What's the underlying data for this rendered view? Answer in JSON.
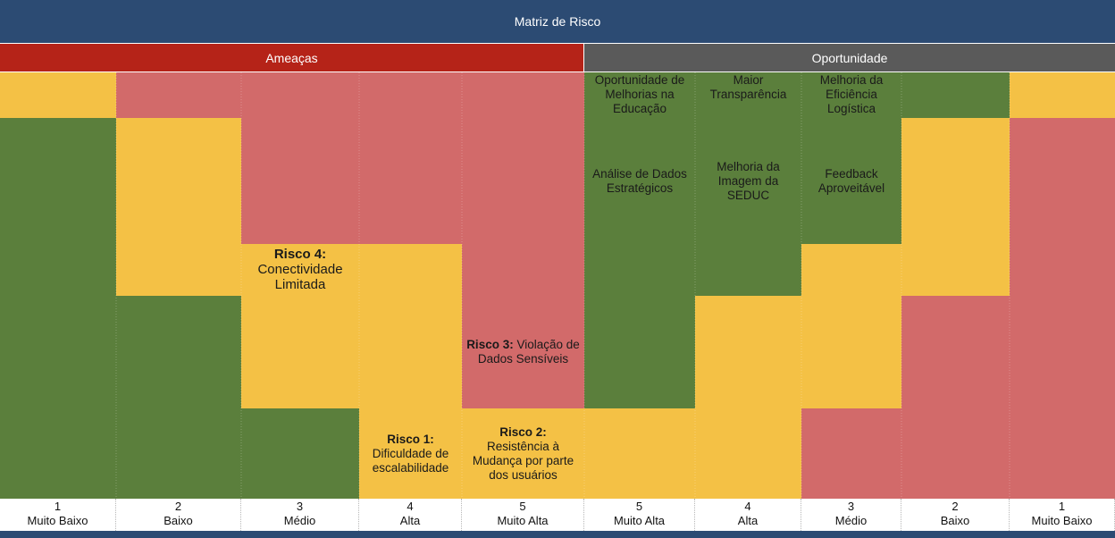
{
  "title": "Matriz de Risco",
  "sections": {
    "threats": "Ameaças",
    "opportunities": "Oportunidade"
  },
  "colors": {
    "green": "#5b7f3c",
    "yellow": "#f4c145",
    "red": "#d26a6a",
    "title_bar": "#2c4b73",
    "threats_header": "#b52318",
    "opportunities_header": "#5a5a5a"
  },
  "chart_data": {
    "type": "heatmap",
    "title": "Matriz de Risco",
    "legend": [
      "Ameaças",
      "Oportunidade"
    ],
    "columns": [
      {
        "section": "Ameaças",
        "number": "1",
        "label": "Muito Baixo"
      },
      {
        "section": "Ameaças",
        "number": "2",
        "label": "Baixo"
      },
      {
        "section": "Ameaças",
        "number": "3",
        "label": "Médio"
      },
      {
        "section": "Ameaças",
        "number": "4",
        "label": "Alta"
      },
      {
        "section": "Ameaças",
        "number": "5",
        "label": "Muito Alta"
      },
      {
        "section": "Oportunidade",
        "number": "5",
        "label": "Muito Alta"
      },
      {
        "section": "Oportunidade",
        "number": "4",
        "label": "Alta"
      },
      {
        "section": "Oportunidade",
        "number": "3",
        "label": "Médio"
      },
      {
        "section": "Oportunidade",
        "number": "2",
        "label": "Baixo"
      },
      {
        "section": "Oportunidade",
        "number": "1",
        "label": "Muito Baixo"
      }
    ],
    "cell_colors": [
      [
        "yellow",
        "red",
        "red",
        "red",
        "red",
        "green",
        "green",
        "green",
        "green",
        "yellow"
      ],
      [
        "green",
        "yellow",
        "red",
        "red",
        "red",
        "green",
        "green",
        "green",
        "yellow",
        "red"
      ],
      [
        "green",
        "yellow",
        "yellow",
        "yellow",
        "red",
        "green",
        "green",
        "yellow",
        "yellow",
        "red"
      ],
      [
        "green",
        "green",
        "yellow",
        "yellow",
        "red",
        "green",
        "yellow",
        "yellow",
        "red",
        "red"
      ],
      [
        "green",
        "green",
        "green",
        "yellow",
        "yellow",
        "yellow",
        "yellow",
        "red",
        "red",
        "red"
      ]
    ],
    "annotations": [
      {
        "row": 0,
        "col": 5,
        "label": "",
        "text": "Oportunidade de Melhorias na Educação"
      },
      {
        "row": 0,
        "col": 6,
        "label": "",
        "text": "Maior Transparência"
      },
      {
        "row": 0,
        "col": 7,
        "label": "",
        "text": "Melhoria da Eficiência Logística"
      },
      {
        "row": 1,
        "col": 5,
        "label": "",
        "text": "Análise de Dados Estratégicos"
      },
      {
        "row": 1,
        "col": 6,
        "label": "",
        "text": "Melhoria da Imagem da SEDUC"
      },
      {
        "row": 1,
        "col": 7,
        "label": "",
        "text": "Feedback Aproveitável"
      },
      {
        "row": 2,
        "col": 2,
        "label": "Risco 4:",
        "text": "Conectividade Limitada"
      },
      {
        "row": 3,
        "col": 4,
        "label": "Risco 3:",
        "text": "Violação de Dados Sensíveis"
      },
      {
        "row": 4,
        "col": 3,
        "label": "Risco 1:",
        "text": "Dificuldade de escalabilidade"
      },
      {
        "row": 4,
        "col": 4,
        "label": "Risco 2:",
        "text": "Resistência à Mudança por parte dos usuários"
      }
    ]
  }
}
